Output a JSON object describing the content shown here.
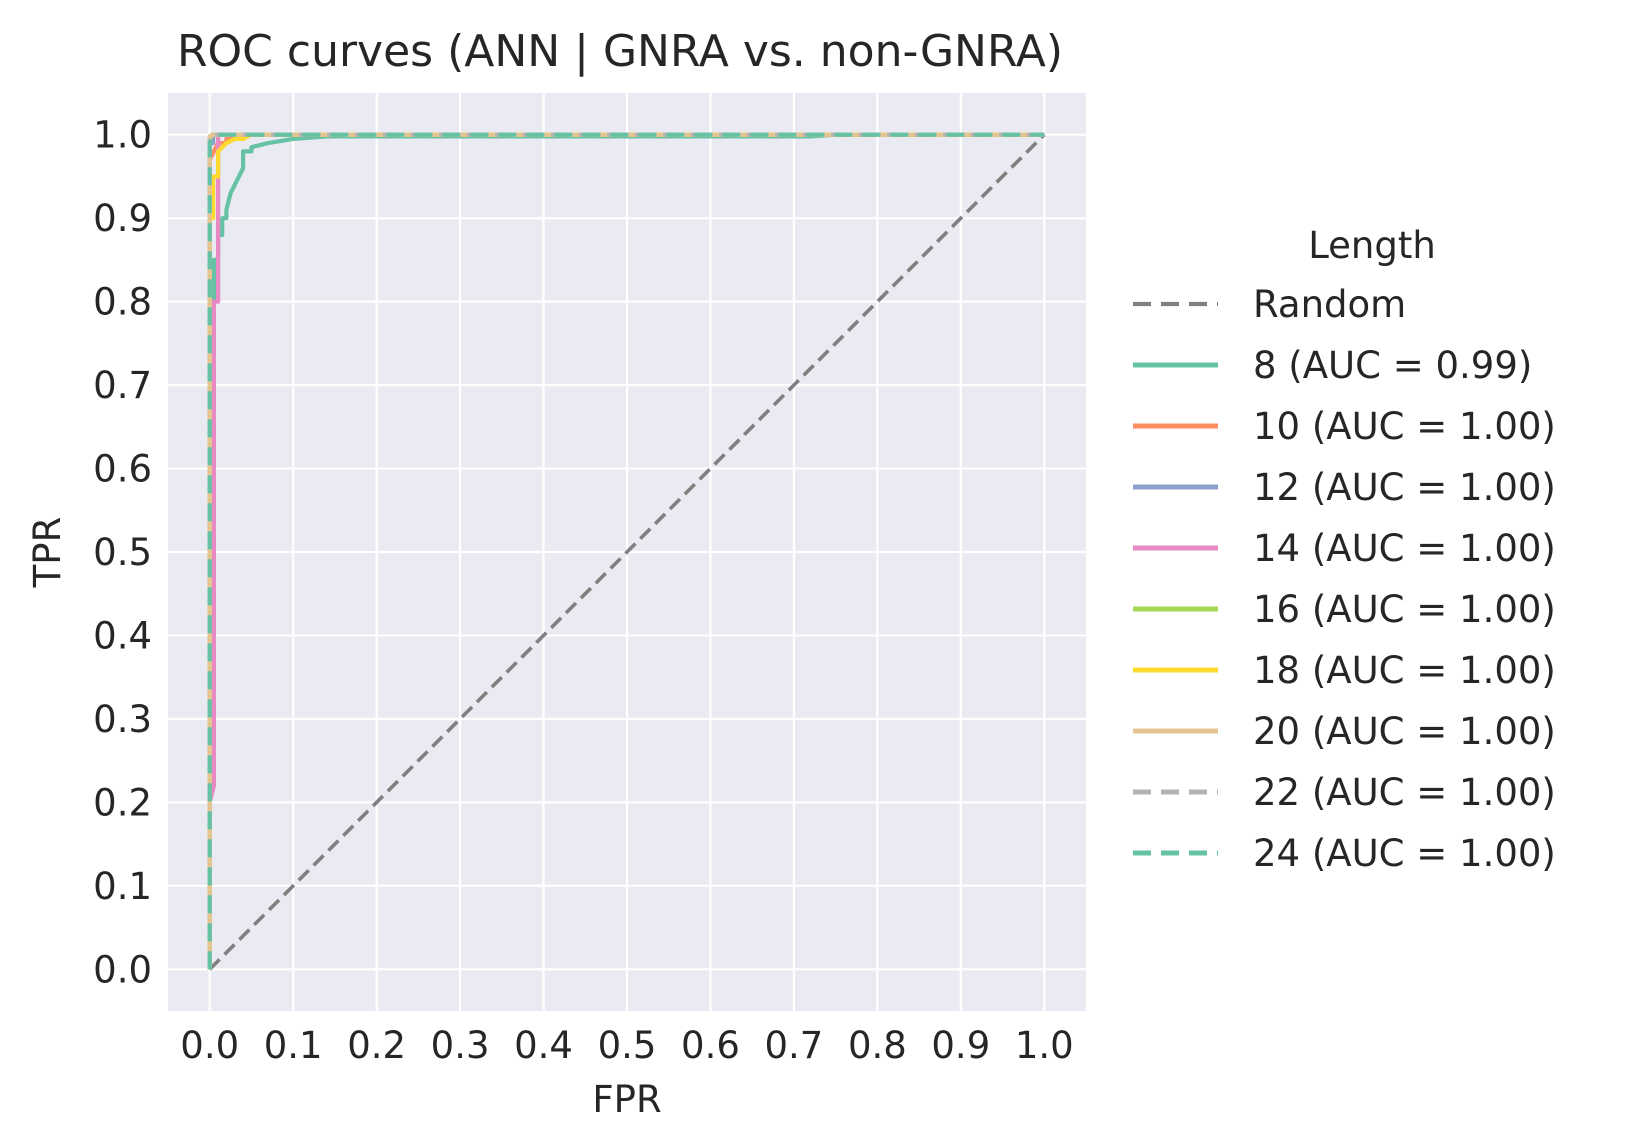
{
  "chart_data": {
    "type": "line",
    "title": "ROC curves (ANN | GNRA vs. non-GNRA)",
    "xlabel": "FPR",
    "ylabel": "TPR",
    "xlim": [
      -0.05,
      1.05
    ],
    "ylim": [
      -0.05,
      1.05
    ],
    "xticks": [
      0.0,
      0.1,
      0.2,
      0.3,
      0.4,
      0.5,
      0.6,
      0.7,
      0.8,
      0.9,
      1.0
    ],
    "xtick_labels": [
      "0.0",
      "0.1",
      "0.2",
      "0.3",
      "0.4",
      "0.5",
      "0.6",
      "0.7",
      "0.8",
      "0.9",
      "1.0"
    ],
    "yticks": [
      0.0,
      0.1,
      0.2,
      0.3,
      0.4,
      0.5,
      0.6,
      0.7,
      0.8,
      0.9,
      1.0
    ],
    "ytick_labels": [
      "0.0",
      "0.1",
      "0.2",
      "0.3",
      "0.4",
      "0.5",
      "0.6",
      "0.7",
      "0.8",
      "0.9",
      "1.0"
    ],
    "grid": true,
    "background": "#eaeaf2",
    "legend": {
      "title": "Length",
      "placement": "outside-right"
    },
    "series": [
      {
        "name": "Random",
        "color": "#808080",
        "dash": true,
        "x": [
          0,
          1
        ],
        "y": [
          0,
          1
        ]
      },
      {
        "name": "8 (AUC = 0.99)",
        "color": "#66c2a5",
        "dash": false,
        "x": [
          0,
          0,
          0.005,
          0.005,
          0.01,
          0.01,
          0.015,
          0.015,
          0.02,
          0.02,
          0.025,
          0.03,
          0.04,
          0.04,
          0.05,
          0.05,
          0.07,
          0.1,
          0.14,
          0.3,
          0.5,
          0.72,
          0.75,
          1.0
        ],
        "y": [
          0,
          0.8,
          0.8,
          0.85,
          0.85,
          0.88,
          0.88,
          0.9,
          0.9,
          0.91,
          0.93,
          0.94,
          0.96,
          0.98,
          0.98,
          0.985,
          0.99,
          0.995,
          0.998,
          0.998,
          0.998,
          0.998,
          1.0,
          1.0
        ]
      },
      {
        "name": "10 (AUC = 1.00)",
        "color": "#fc8d62",
        "dash": false,
        "x": [
          0,
          0,
          0.005,
          0.01,
          0.02,
          0.02,
          0.03,
          1.0
        ],
        "y": [
          0,
          0.97,
          0.98,
          0.99,
          0.99,
          0.995,
          1.0,
          1.0
        ]
      },
      {
        "name": "12 (AUC = 1.00)",
        "color": "#8da0cb",
        "dash": false,
        "x": [
          0,
          0,
          0.004,
          0.004,
          1.0
        ],
        "y": [
          0,
          0.99,
          0.99,
          1.0,
          1.0
        ]
      },
      {
        "name": "14 (AUC = 1.00)",
        "color": "#e78ac3",
        "dash": false,
        "x": [
          0,
          0,
          0.005,
          0.005,
          0.01,
          0.01,
          1.0
        ],
        "y": [
          0,
          0.2,
          0.22,
          0.8,
          0.8,
          1.0,
          1.0
        ]
      },
      {
        "name": "16 (AUC = 1.00)",
        "color": "#a6d854",
        "dash": false,
        "x": [
          0,
          0,
          0.003,
          1.0
        ],
        "y": [
          0,
          0.995,
          1.0,
          1.0
        ]
      },
      {
        "name": "18 (AUC = 1.00)",
        "color": "#ffd92f",
        "dash": false,
        "x": [
          0,
          0,
          0.004,
          0.004,
          0.01,
          0.01,
          0.02,
          0.03,
          0.04,
          0.05,
          1.0
        ],
        "y": [
          0,
          0.9,
          0.9,
          0.95,
          0.95,
          0.98,
          0.99,
          0.995,
          0.995,
          1.0,
          1.0
        ]
      },
      {
        "name": "20 (AUC = 1.00)",
        "color": "#e5c494",
        "dash": false,
        "x": [
          0,
          0,
          0.004,
          1.0
        ],
        "y": [
          0,
          0.998,
          1.0,
          1.0
        ]
      },
      {
        "name": "22 (AUC = 1.00)",
        "color": "#b3b3b3",
        "dash": true,
        "x": [
          0,
          0,
          1.0
        ],
        "y": [
          0,
          1.0,
          1.0
        ]
      },
      {
        "name": "24 (AUC = 1.00)",
        "color": "#66c2a5",
        "dash": true,
        "x": [
          0,
          0,
          0.005,
          1.0
        ],
        "y": [
          0,
          0.99,
          1.0,
          1.0
        ]
      }
    ]
  }
}
